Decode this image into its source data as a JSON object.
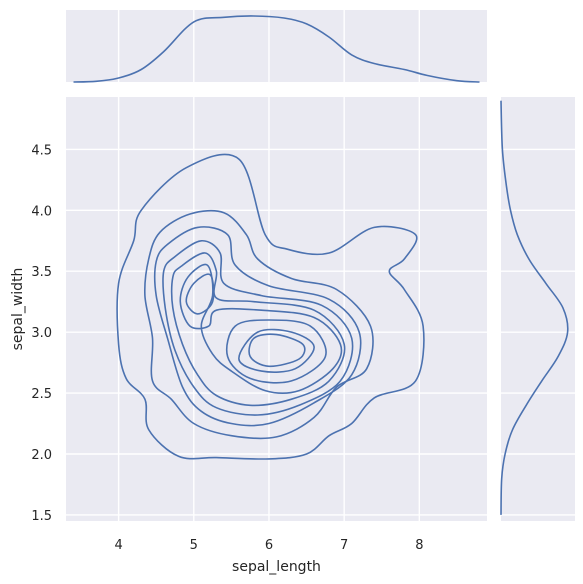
{
  "chart_data": {
    "type": "kde-joint",
    "xlabel": "sepal_length",
    "ylabel": "sepal_width",
    "xlim": [
      3.3,
      8.9
    ],
    "ylim": [
      1.45,
      4.93
    ],
    "xticks": [
      4,
      5,
      6,
      7,
      8
    ],
    "yticks": [
      1.5,
      2.0,
      2.5,
      3.0,
      3.5,
      4.0,
      4.5
    ],
    "xtick_labels": [
      "4",
      "5",
      "6",
      "7",
      "8"
    ],
    "ytick_labels": [
      "1.5",
      "2.0",
      "2.5",
      "3.0",
      "3.5",
      "4.0",
      "4.5"
    ],
    "grid": true,
    "colors": {
      "line": "#4c72b0",
      "panel": "#eaeaf2",
      "grid": "#ffffff"
    },
    "marginal_x": {
      "x": [
        3.4,
        3.7,
        4.0,
        4.3,
        4.6,
        5.0,
        5.4,
        5.8,
        6.2,
        6.5,
        6.8,
        7.1,
        7.4,
        7.8,
        8.1,
        8.5,
        8.8
      ],
      "density": [
        0.0,
        0.01,
        0.06,
        0.19,
        0.46,
        0.91,
        0.98,
        1.0,
        0.97,
        0.88,
        0.68,
        0.41,
        0.28,
        0.19,
        0.1,
        0.02,
        0.0
      ]
    },
    "marginal_y": {
      "y": [
        1.5,
        1.8,
        2.0,
        2.2,
        2.4,
        2.6,
        2.8,
        3.0,
        3.2,
        3.4,
        3.6,
        3.8,
        4.0,
        4.2,
        4.5,
        4.9
      ],
      "density": [
        0.0,
        0.01,
        0.06,
        0.17,
        0.37,
        0.6,
        0.84,
        0.98,
        0.91,
        0.66,
        0.41,
        0.24,
        0.14,
        0.08,
        0.02,
        0.0
      ]
    },
    "contours": [
      [
        [
          4.3,
          4.0
        ],
        [
          4.9,
          4.35
        ],
        [
          5.6,
          4.42
        ],
        [
          5.95,
          3.8
        ],
        [
          6.25,
          3.68
        ],
        [
          6.8,
          3.65
        ],
        [
          7.4,
          3.86
        ],
        [
          7.95,
          3.8
        ],
        [
          7.8,
          3.6
        ],
        [
          7.6,
          3.5
        ],
        [
          7.8,
          3.35
        ],
        [
          8.05,
          3.05
        ],
        [
          7.95,
          2.6
        ],
        [
          7.4,
          2.46
        ],
        [
          7.1,
          2.25
        ],
        [
          6.8,
          2.15
        ],
        [
          6.5,
          2.0
        ],
        [
          6.0,
          1.96
        ],
        [
          5.3,
          1.97
        ],
        [
          4.8,
          1.98
        ],
        [
          4.4,
          2.2
        ],
        [
          4.35,
          2.45
        ],
        [
          4.1,
          2.62
        ],
        [
          4.0,
          2.9
        ],
        [
          4.0,
          3.4
        ],
        [
          4.2,
          3.75
        ]
      ],
      [
        [
          4.55,
          3.82
        ],
        [
          4.95,
          3.97
        ],
        [
          5.4,
          3.98
        ],
        [
          5.7,
          3.8
        ],
        [
          5.85,
          3.6
        ],
        [
          6.3,
          3.44
        ],
        [
          6.9,
          3.35
        ],
        [
          7.35,
          3.05
        ],
        [
          7.3,
          2.7
        ],
        [
          6.9,
          2.55
        ],
        [
          6.6,
          2.3
        ],
        [
          6.1,
          2.14
        ],
        [
          5.5,
          2.15
        ],
        [
          5.0,
          2.25
        ],
        [
          4.7,
          2.45
        ],
        [
          4.45,
          2.6
        ],
        [
          4.45,
          2.95
        ],
        [
          4.35,
          3.3
        ],
        [
          4.4,
          3.6
        ]
      ],
      [
        [
          4.65,
          3.72
        ],
        [
          5.05,
          3.86
        ],
        [
          5.45,
          3.8
        ],
        [
          5.55,
          3.55
        ],
        [
          6.0,
          3.38
        ],
        [
          6.8,
          3.27
        ],
        [
          7.2,
          3.0
        ],
        [
          7.1,
          2.65
        ],
        [
          6.6,
          2.42
        ],
        [
          6.0,
          2.25
        ],
        [
          5.5,
          2.25
        ],
        [
          5.1,
          2.35
        ],
        [
          4.85,
          2.55
        ],
        [
          4.65,
          2.95
        ],
        [
          4.5,
          3.3
        ],
        [
          4.5,
          3.58
        ]
      ],
      [
        [
          4.75,
          3.62
        ],
        [
          5.1,
          3.75
        ],
        [
          5.35,
          3.65
        ],
        [
          5.4,
          3.4
        ],
        [
          5.9,
          3.3
        ],
        [
          6.7,
          3.22
        ],
        [
          7.1,
          2.95
        ],
        [
          6.95,
          2.6
        ],
        [
          6.4,
          2.4
        ],
        [
          5.85,
          2.32
        ],
        [
          5.3,
          2.38
        ],
        [
          5.0,
          2.55
        ],
        [
          4.75,
          2.85
        ],
        [
          4.62,
          3.2
        ],
        [
          4.6,
          3.5
        ]
      ],
      [
        [
          4.83,
          3.54
        ],
        [
          5.15,
          3.65
        ],
        [
          5.3,
          3.5
        ],
        [
          5.3,
          3.28
        ],
        [
          5.8,
          3.25
        ],
        [
          6.6,
          3.18
        ],
        [
          7.0,
          2.9
        ],
        [
          6.8,
          2.6
        ],
        [
          6.3,
          2.45
        ],
        [
          5.75,
          2.4
        ],
        [
          5.3,
          2.48
        ],
        [
          5.05,
          2.65
        ],
        [
          4.85,
          2.9
        ],
        [
          4.72,
          3.2
        ],
        [
          4.72,
          3.45
        ]
      ],
      [
        [
          4.92,
          3.45
        ],
        [
          5.18,
          3.55
        ],
        [
          5.25,
          3.3
        ],
        [
          5.1,
          3.05
        ],
        [
          5.25,
          2.82
        ],
        [
          5.5,
          2.68
        ],
        [
          5.95,
          2.52
        ],
        [
          6.4,
          2.52
        ],
        [
          6.85,
          2.7
        ],
        [
          6.95,
          2.9
        ],
        [
          6.6,
          3.12
        ],
        [
          5.9,
          3.18
        ],
        [
          5.3,
          3.18
        ],
        [
          5.2,
          3.05
        ],
        [
          4.95,
          3.05
        ],
        [
          4.82,
          3.25
        ]
      ],
      [
        [
          5.0,
          3.4
        ],
        [
          5.22,
          3.47
        ],
        [
          5.25,
          3.25
        ],
        [
          5.05,
          3.15
        ],
        [
          4.9,
          3.25
        ]
      ],
      [
        [
          5.45,
          2.8
        ],
        [
          5.75,
          2.62
        ],
        [
          6.3,
          2.6
        ],
        [
          6.75,
          2.8
        ],
        [
          6.55,
          3.05
        ],
        [
          6.0,
          3.1
        ],
        [
          5.55,
          3.05
        ]
      ],
      [
        [
          5.6,
          2.78
        ],
        [
          5.9,
          2.68
        ],
        [
          6.35,
          2.7
        ],
        [
          6.6,
          2.88
        ],
        [
          6.3,
          3.0
        ],
        [
          5.85,
          3.0
        ]
      ],
      [
        [
          5.75,
          2.8
        ],
        [
          6.0,
          2.72
        ],
        [
          6.4,
          2.78
        ],
        [
          6.45,
          2.9
        ],
        [
          6.1,
          2.98
        ],
        [
          5.8,
          2.95
        ]
      ]
    ]
  }
}
